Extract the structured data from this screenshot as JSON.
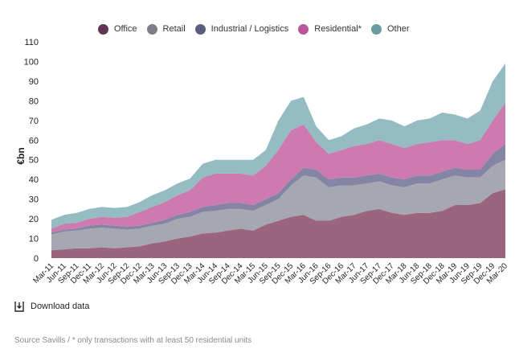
{
  "chart_data": {
    "type": "area",
    "stacked": true,
    "ylabel": "€bn",
    "ylim": [
      0,
      110
    ],
    "yticks": [
      0,
      10,
      20,
      30,
      40,
      50,
      60,
      70,
      80,
      90,
      100,
      110
    ],
    "grid": false,
    "legend_position": "top",
    "x": [
      "Mar-11",
      "Jun-11",
      "Sep-11",
      "Dec-11",
      "Mar-12",
      "Jun-12",
      "Sep-12",
      "Dec-12",
      "Mar-13",
      "Jun-13",
      "Sep-13",
      "Dec-13",
      "Mar-14",
      "Jun-14",
      "Sep-14",
      "Dec-14",
      "Mar-15",
      "Jun-15",
      "Sep-15",
      "Dec-15",
      "Mar-16",
      "Jun-16",
      "Sep-16",
      "Dec-16",
      "Mar-17",
      "Jun-17",
      "Sep-17",
      "Dec-17",
      "Mar-18",
      "Jun-18",
      "Sep-18",
      "Dec-18",
      "Mar-19",
      "Jun-19",
      "Sep-19",
      "Dec-19",
      "Mar-20"
    ],
    "series": [
      {
        "name": "Office",
        "color": "#9b6580",
        "values": [
          4,
          4.5,
          5,
          5,
          5.5,
          5,
          5.5,
          6,
          7.5,
          8.5,
          10,
          11,
          12.5,
          13,
          14,
          15,
          14,
          17,
          19,
          21,
          22,
          19,
          19,
          21,
          22,
          24,
          25,
          23,
          22,
          23,
          23,
          24,
          27,
          27,
          28,
          33,
          35
        ]
      },
      {
        "name": "Retail",
        "color": "#a7a7b1",
        "values": [
          8,
          9,
          9,
          10,
          10,
          10,
          9,
          9,
          9,
          9,
          10,
          10,
          11,
          11,
          11,
          10,
          10,
          10,
          11,
          16,
          20,
          22,
          17,
          16,
          15,
          14,
          14,
          14,
          14,
          15,
          15,
          16,
          15,
          14,
          13,
          14,
          15
        ]
      },
      {
        "name": "Industrial / Logistics",
        "color": "#8485a5",
        "values": [
          1,
          1,
          1,
          1.5,
          1.5,
          1.5,
          1.5,
          1.5,
          1.5,
          2,
          2,
          2.5,
          2.5,
          3,
          3,
          3,
          3,
          3,
          3,
          3,
          4,
          4,
          4,
          4,
          4,
          4,
          4,
          4,
          4,
          4,
          4,
          4,
          4,
          4,
          4,
          6,
          8
        ]
      },
      {
        "name": "Residential*",
        "color": "#cc7ab0",
        "values": [
          2,
          3,
          3,
          3.5,
          4,
          4,
          5,
          7,
          8,
          9,
          10,
          11,
          15,
          16,
          15,
          15,
          15,
          17,
          22,
          25,
          22,
          14,
          13,
          14,
          16,
          16,
          17,
          17,
          16,
          16,
          17,
          16,
          14,
          13,
          15,
          17,
          21
        ]
      },
      {
        "name": "Other",
        "color": "#94bcc2",
        "values": [
          4.5,
          4.5,
          5,
          5,
          5,
          5,
          5,
          5,
          6,
          6,
          6,
          6,
          7,
          7,
          7,
          7,
          8,
          8,
          15,
          15,
          14,
          8,
          7,
          7,
          9,
          10,
          11,
          12,
          11,
          12,
          12,
          14,
          13,
          13,
          15,
          20,
          20
        ]
      }
    ]
  },
  "legend": {
    "items": [
      {
        "label": "Office",
        "color": "#5e3553"
      },
      {
        "label": "Retail",
        "color": "#7e7e8a"
      },
      {
        "label": "Industrial / Logistics",
        "color": "#5c5e7e"
      },
      {
        "label": "Residential*",
        "color": "#b9579a"
      },
      {
        "label": "Other",
        "color": "#6b9ba3"
      }
    ]
  },
  "download": {
    "label": "Download data",
    "icon": "download-icon"
  },
  "source": {
    "text": "Source Savills  / * only transactions with at least 50 residential units"
  }
}
